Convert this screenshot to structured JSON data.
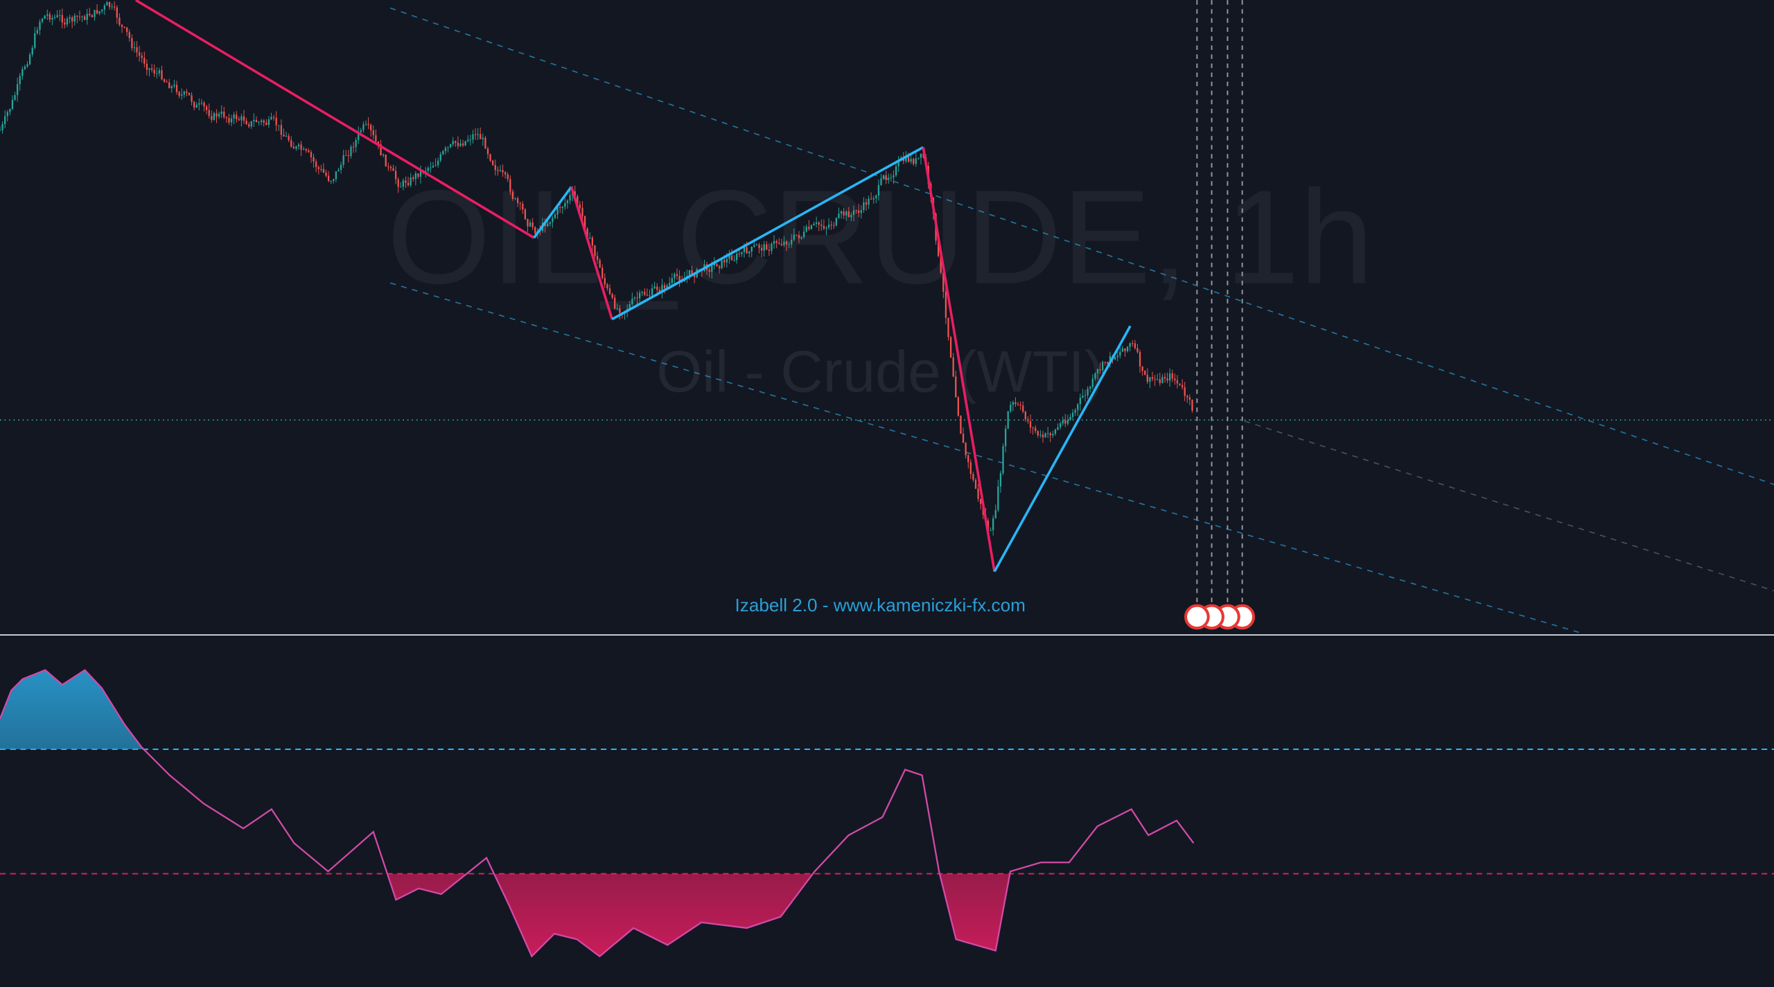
{
  "watermark": {
    "symbol": "OIL_CRUDE, 1h",
    "description": "Oil - Crude (WTI)"
  },
  "indicator": {
    "label": "Izabell 2.0 - www.kameniczki-fx.com"
  }
}
